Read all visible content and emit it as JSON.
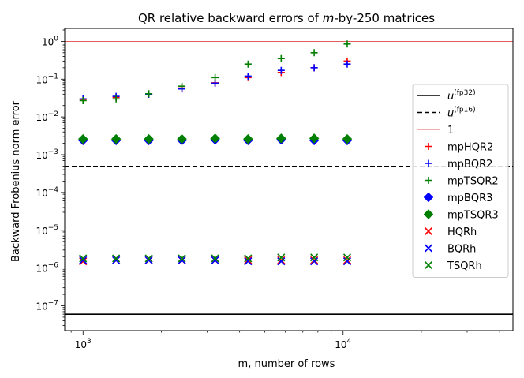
{
  "chart_data": {
    "type": "scatter",
    "title_parts": {
      "before": "QR relative backward errors of ",
      "italic": "m",
      "after": "-by-250 matrices"
    },
    "xlabel": "m, number of rows",
    "ylabel": "Backward Frobenius norm error",
    "xscale": "log",
    "yscale": "log",
    "xlim": [
      850,
      45000
    ],
    "ylim": [
      2.2e-08,
      2.2
    ],
    "x_ticks": [
      {
        "value": 1000,
        "base": "10",
        "exp": "3"
      },
      {
        "value": 10000,
        "base": "10",
        "exp": "4"
      }
    ],
    "y_ticks": [
      {
        "value": 1e-07,
        "base": "10",
        "exp": "−7"
      },
      {
        "value": 1e-06,
        "base": "10",
        "exp": "−6"
      },
      {
        "value": 1e-05,
        "base": "10",
        "exp": "−5"
      },
      {
        "value": 0.0001,
        "base": "10",
        "exp": "−4"
      },
      {
        "value": 0.001,
        "base": "10",
        "exp": "−3"
      },
      {
        "value": 0.01,
        "base": "10",
        "exp": "−2"
      },
      {
        "value": 0.1,
        "base": "10",
        "exp": "−1"
      },
      {
        "value": 1,
        "base": "10",
        "exp": "0"
      }
    ],
    "grid": false,
    "legend_position": "right",
    "hlines": [
      {
        "key": "u32",
        "y": 6e-08,
        "color": "#000000",
        "style": "solid",
        "label_base": "u",
        "label_sup": "(fp32)"
      },
      {
        "key": "u16",
        "y": 0.00049,
        "color": "#000000",
        "style": "dashed",
        "label_base": "u",
        "label_sup": "(fp16)"
      },
      {
        "key": "one",
        "y": 1,
        "color": "#d62728",
        "style": "thin",
        "label_base": "1",
        "label_sup": ""
      }
    ],
    "x": [
      1000,
      1340,
      1790,
      2400,
      3220,
      4310,
      5780,
      7740,
      10370
    ],
    "series": [
      {
        "key": "mpHQR2",
        "name": "mpHQR2",
        "marker": "plus",
        "color": "#ff0000",
        "values": [
          0.029,
          0.033,
          0.04,
          0.058,
          0.08,
          0.11,
          0.15,
          0.2,
          0.3
        ]
      },
      {
        "key": "mpBQR2",
        "name": "mpBQR2",
        "marker": "plus",
        "color": "#0000ff",
        "values": [
          0.03,
          0.035,
          0.04,
          0.055,
          0.078,
          0.12,
          0.17,
          0.2,
          0.25
        ]
      },
      {
        "key": "mpTSQR2",
        "name": "mpTSQR2",
        "marker": "plus",
        "color": "#008000",
        "values": [
          0.027,
          0.03,
          0.041,
          0.065,
          0.11,
          0.25,
          0.35,
          0.5,
          0.85
        ]
      },
      {
        "key": "mpBQR3",
        "name": "mpBQR3",
        "marker": "diamond",
        "color": "#0000ff",
        "values": [
          0.0024,
          0.0024,
          0.0024,
          0.0024,
          0.0025,
          0.0024,
          0.0025,
          0.0024,
          0.0024
        ]
      },
      {
        "key": "mpTSQR3",
        "name": "mpTSQR3",
        "marker": "diamond",
        "color": "#008000",
        "values": [
          0.0026,
          0.0026,
          0.0026,
          0.0026,
          0.0027,
          0.0026,
          0.0027,
          0.0027,
          0.0026
        ]
      },
      {
        "key": "HQRh",
        "name": "HQRh",
        "marker": "x",
        "color": "#ff0000",
        "values": [
          1.5e-06,
          1.6e-06,
          1.6e-06,
          1.6e-06,
          1.6e-06,
          1.6e-06,
          1.6e-06,
          1.6e-06,
          1.6e-06
        ]
      },
      {
        "key": "BQRh",
        "name": "BQRh",
        "marker": "x",
        "color": "#0000ff",
        "values": [
          1.6e-06,
          1.6e-06,
          1.6e-06,
          1.6e-06,
          1.6e-06,
          1.5e-06,
          1.5e-06,
          1.5e-06,
          1.5e-06
        ]
      },
      {
        "key": "TSQRh",
        "name": "TSQRh",
        "marker": "x",
        "color": "#008000",
        "values": [
          1.8e-06,
          1.8e-06,
          1.8e-06,
          1.8e-06,
          1.8e-06,
          1.8e-06,
          1.9e-06,
          1.9e-06,
          1.9e-06
        ]
      }
    ]
  }
}
